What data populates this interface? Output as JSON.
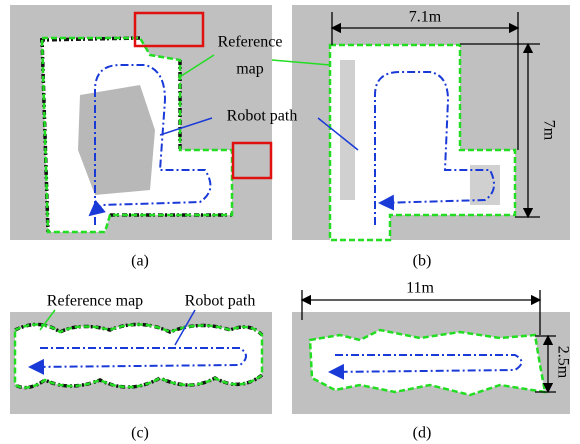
{
  "panels": [
    {
      "label": "(a)",
      "annotations": {
        "reference_map": [
          "Reference",
          "map"
        ],
        "robot_path": "Robot path"
      }
    },
    {
      "label": "(b)",
      "width": "7.1m",
      "height": "7m"
    },
    {
      "label": "(c)",
      "annotations": {
        "reference_map": "Reference map",
        "robot_path": "Robot path"
      }
    },
    {
      "label": "(d)",
      "width": "11m",
      "height": "2.5m"
    }
  ]
}
